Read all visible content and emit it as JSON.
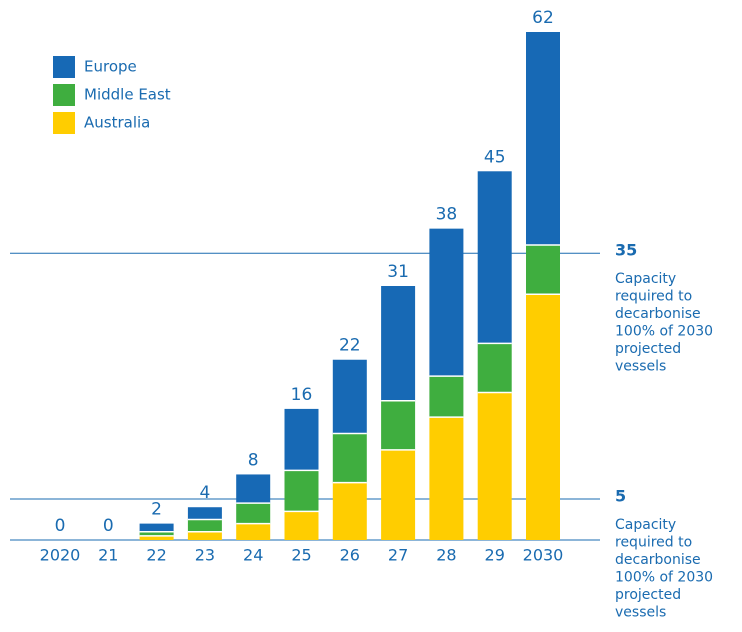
{
  "chart_data": {
    "type": "stacked_bar",
    "categories": [
      "2020",
      "21",
      "22",
      "23",
      "24",
      "25",
      "26",
      "27",
      "28",
      "29",
      "2030"
    ],
    "series": [
      {
        "name": "Europe",
        "color": "#1769b5",
        "values": [
          0,
          0,
          1,
          1.5,
          3.5,
          7.5,
          9,
          14,
          18,
          21,
          26
        ]
      },
      {
        "name": "Middle East",
        "color": "#3fae3f",
        "values": [
          0,
          0,
          0.5,
          1.5,
          2.5,
          5,
          6,
          6,
          5,
          6,
          6
        ]
      },
      {
        "name": "Australia",
        "color": "#ffcd00",
        "values": [
          0,
          0,
          0.5,
          1,
          2,
          3.5,
          7,
          11,
          15,
          18,
          30
        ]
      }
    ],
    "totals": [
      0,
      0,
      2,
      4,
      8,
      16,
      22,
      31,
      38,
      45,
      62
    ],
    "ylim": [
      0,
      62
    ],
    "ref_lines": [
      {
        "value": 35,
        "text": [
          "Capacity",
          "required to",
          "decarbonise",
          "100% of 2030",
          "projected",
          "vessels"
        ]
      },
      {
        "value": 5,
        "text": [
          "Capacity",
          "required to",
          "decarbonise",
          "100% of 2030",
          "projected",
          "vessels"
        ]
      }
    ]
  }
}
